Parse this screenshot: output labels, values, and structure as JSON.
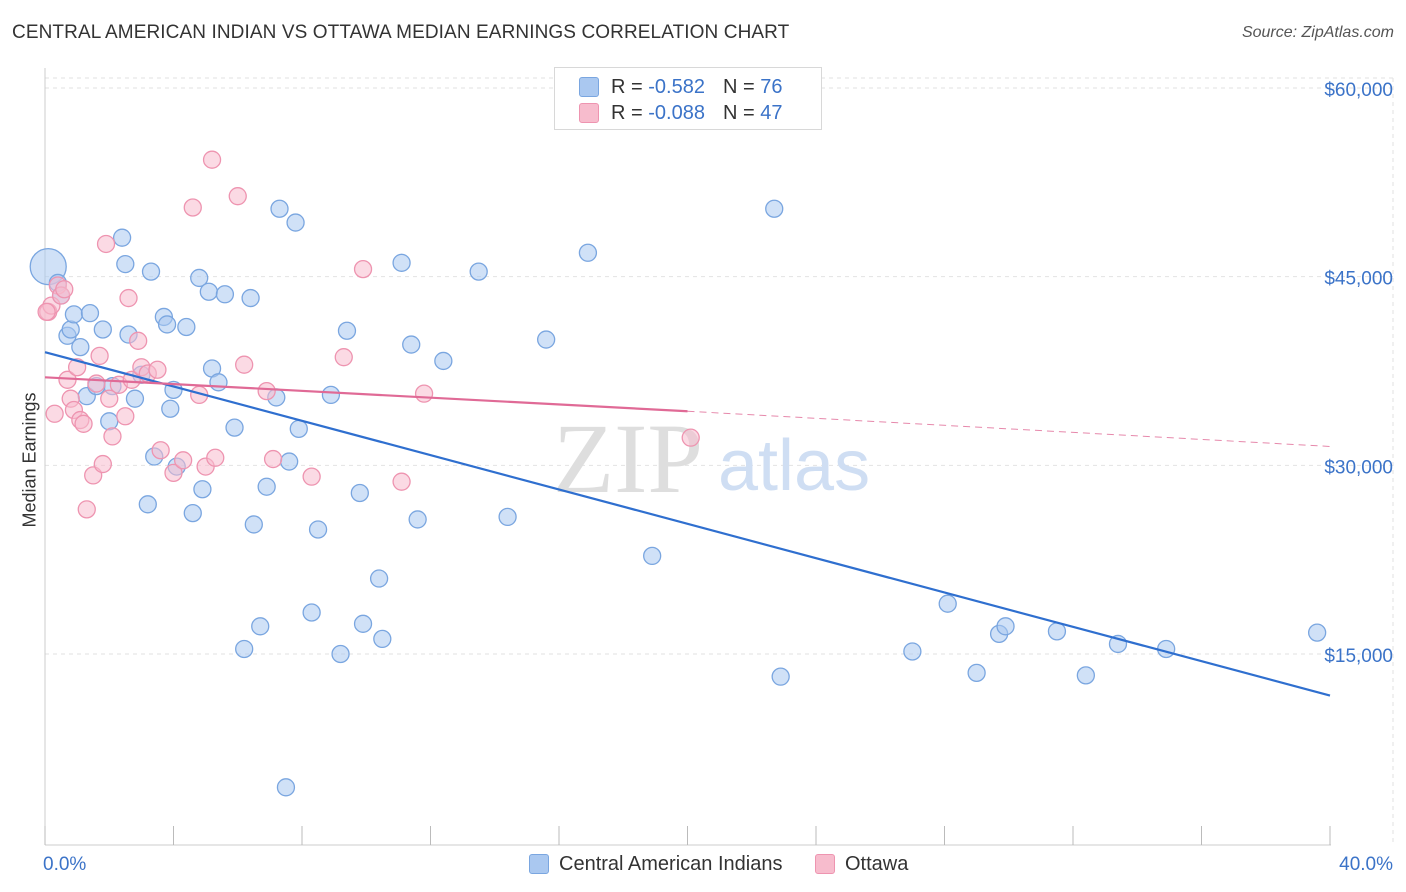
{
  "title": "CENTRAL AMERICAN INDIAN VS OTTAWA MEDIAN EARNINGS CORRELATION CHART",
  "source": "Source: ZipAtlas.com",
  "watermark": {
    "zip": "ZIP",
    "atlas": "atlas"
  },
  "legend": {
    "rows": [
      {
        "r_label": "R =",
        "r_value": "-0.582",
        "n_label": "N =",
        "n_value": "76"
      },
      {
        "r_label": "R =",
        "r_value": "-0.088",
        "n_label": "N =",
        "n_value": "47"
      }
    ]
  },
  "bottom_legend": [
    "Central American Indians",
    "Ottawa"
  ],
  "colors": {
    "blue_fill": "#aac8f0",
    "blue_stroke": "#7aa6e0",
    "blue_line": "#2f6fcf",
    "pink_fill": "#f7bccd",
    "pink_stroke": "#ee94b0",
    "pink_line": "#e06a96",
    "tick_text": "#3b73c8",
    "grid": "#e2e2e2"
  },
  "chart_data": {
    "type": "scatter",
    "title": "CENTRAL AMERICAN INDIAN VS OTTAWA MEDIAN EARNINGS CORRELATION CHART",
    "xlabel": "",
    "ylabel": "Median Earnings",
    "xlim": [
      0,
      40
    ],
    "ylim": [
      0,
      63000
    ],
    "x_tick_labels": [
      "0.0%",
      "40.0%"
    ],
    "y_ticks": [
      15000,
      30000,
      45000,
      60000
    ],
    "y_tick_labels": [
      "$15,000",
      "$30,000",
      "$45,000",
      "$60,000"
    ],
    "grid": true,
    "legend_position": "top-center",
    "series": [
      {
        "name": "Central American Indians",
        "color": "#aac8f0",
        "r": -0.582,
        "n": 76,
        "trend": {
          "x": [
            0,
            40
          ],
          "y": [
            39000,
            11700
          ]
        },
        "points": [
          [
            0.1,
            45800
          ],
          [
            0.4,
            44500
          ],
          [
            0.5,
            43500
          ],
          [
            0.7,
            40300
          ],
          [
            0.8,
            40800
          ],
          [
            0.9,
            42000
          ],
          [
            1.1,
            39400
          ],
          [
            1.3,
            35500
          ],
          [
            1.4,
            42100
          ],
          [
            1.6,
            36300
          ],
          [
            1.8,
            40800
          ],
          [
            2.0,
            33500
          ],
          [
            2.1,
            36300
          ],
          [
            2.4,
            48100
          ],
          [
            2.5,
            46000
          ],
          [
            2.6,
            40400
          ],
          [
            2.8,
            35300
          ],
          [
            3.0,
            37200
          ],
          [
            3.2,
            26900
          ],
          [
            3.3,
            45400
          ],
          [
            3.4,
            30700
          ],
          [
            3.7,
            41800
          ],
          [
            3.8,
            41200
          ],
          [
            3.9,
            34500
          ],
          [
            4.0,
            36000
          ],
          [
            4.1,
            29900
          ],
          [
            4.4,
            41000
          ],
          [
            4.6,
            26200
          ],
          [
            4.8,
            44900
          ],
          [
            4.9,
            28100
          ],
          [
            5.1,
            43800
          ],
          [
            5.2,
            37700
          ],
          [
            5.4,
            36600
          ],
          [
            5.6,
            43600
          ],
          [
            5.9,
            33000
          ],
          [
            6.2,
            15400
          ],
          [
            6.4,
            43300
          ],
          [
            6.5,
            25300
          ],
          [
            6.7,
            17200
          ],
          [
            6.9,
            28300
          ],
          [
            7.2,
            35400
          ],
          [
            7.3,
            50400
          ],
          [
            7.5,
            4400
          ],
          [
            7.6,
            30300
          ],
          [
            7.8,
            49300
          ],
          [
            7.9,
            32900
          ],
          [
            8.3,
            18300
          ],
          [
            8.5,
            24900
          ],
          [
            8.9,
            35600
          ],
          [
            9.2,
            15000
          ],
          [
            9.4,
            40700
          ],
          [
            9.8,
            27800
          ],
          [
            9.9,
            17400
          ],
          [
            10.4,
            21000
          ],
          [
            10.5,
            16200
          ],
          [
            11.1,
            46100
          ],
          [
            11.4,
            39600
          ],
          [
            11.6,
            25700
          ],
          [
            12.4,
            38300
          ],
          [
            13.5,
            45400
          ],
          [
            14.4,
            25900
          ],
          [
            15.6,
            40000
          ],
          [
            16.9,
            46900
          ],
          [
            18.9,
            22800
          ],
          [
            22.7,
            50400
          ],
          [
            22.9,
            13200
          ],
          [
            27.0,
            15200
          ],
          [
            28.1,
            19000
          ],
          [
            29.0,
            13500
          ],
          [
            29.7,
            16600
          ],
          [
            29.9,
            17200
          ],
          [
            31.5,
            16800
          ],
          [
            32.4,
            13300
          ],
          [
            33.4,
            15800
          ],
          [
            34.9,
            15400
          ],
          [
            39.6,
            16700
          ]
        ]
      },
      {
        "name": "Ottawa",
        "color": "#f7bccd",
        "r": -0.088,
        "n": 47,
        "trend": {
          "x": [
            0,
            20
          ],
          "y": [
            37000,
            34300
          ]
        },
        "trend_dashed": {
          "x": [
            20,
            40
          ],
          "y": [
            34300,
            31500
          ]
        },
        "points": [
          [
            0.1,
            42200
          ],
          [
            0.2,
            42700
          ],
          [
            0.3,
            34100
          ],
          [
            0.4,
            44300
          ],
          [
            0.5,
            43500
          ],
          [
            0.6,
            44000
          ],
          [
            0.7,
            36800
          ],
          [
            0.8,
            35300
          ],
          [
            0.9,
            34400
          ],
          [
            1.0,
            37800
          ],
          [
            1.1,
            33600
          ],
          [
            1.2,
            33300
          ],
          [
            1.3,
            26500
          ],
          [
            1.5,
            29200
          ],
          [
            1.6,
            36500
          ],
          [
            1.7,
            38700
          ],
          [
            1.8,
            30100
          ],
          [
            1.9,
            47600
          ],
          [
            2.0,
            35300
          ],
          [
            2.1,
            32300
          ],
          [
            2.3,
            36400
          ],
          [
            2.5,
            33900
          ],
          [
            2.6,
            43300
          ],
          [
            2.7,
            36800
          ],
          [
            2.9,
            39900
          ],
          [
            3.0,
            37800
          ],
          [
            3.2,
            37300
          ],
          [
            3.5,
            37600
          ],
          [
            3.6,
            31200
          ],
          [
            4.0,
            29400
          ],
          [
            4.3,
            30400
          ],
          [
            4.6,
            50500
          ],
          [
            4.8,
            35600
          ],
          [
            5.0,
            29900
          ],
          [
            5.2,
            54300
          ],
          [
            5.3,
            30600
          ],
          [
            6.0,
            51400
          ],
          [
            6.2,
            38000
          ],
          [
            6.9,
            35900
          ],
          [
            7.1,
            30500
          ],
          [
            8.3,
            29100
          ],
          [
            9.3,
            38600
          ],
          [
            9.9,
            45600
          ],
          [
            11.1,
            28700
          ],
          [
            11.8,
            35700
          ],
          [
            20.1,
            32200
          ],
          [
            0.05,
            42200
          ]
        ]
      }
    ]
  }
}
